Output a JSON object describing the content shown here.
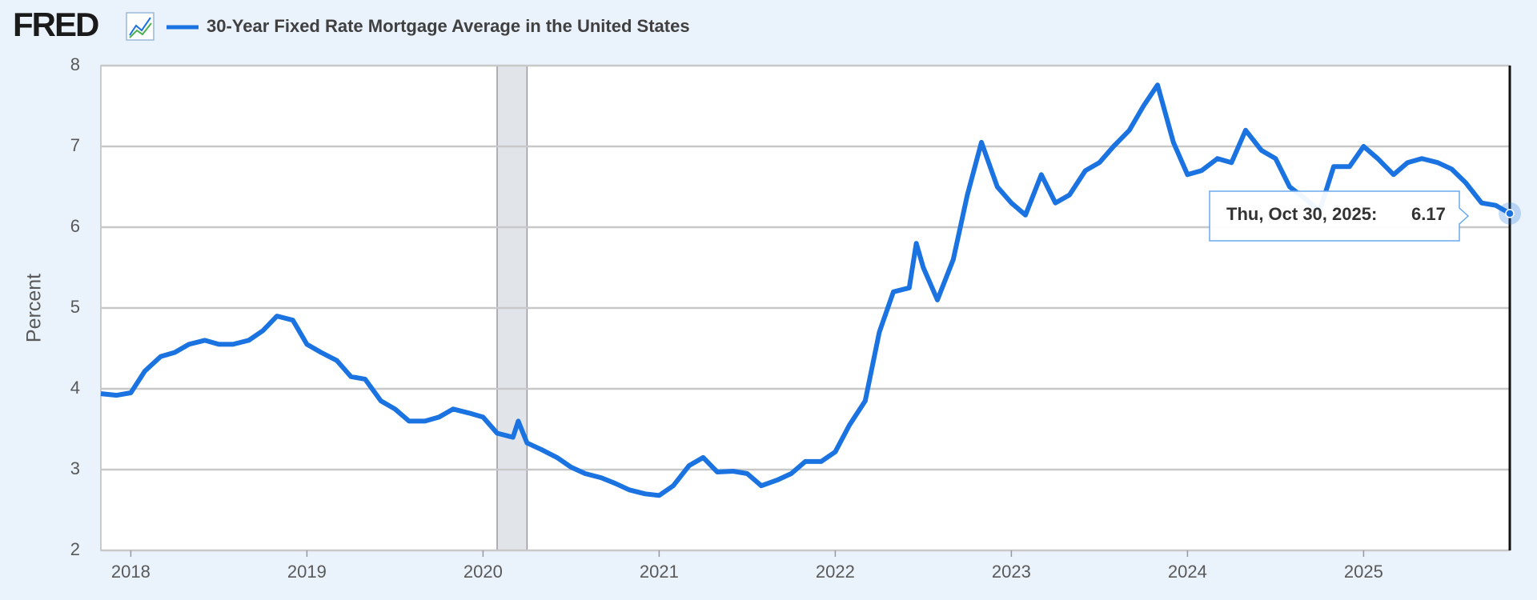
{
  "chart_data": {
    "type": "line",
    "brand": "FRED",
    "ylabel": "Percent",
    "series": [
      {
        "name": "30-Year Fixed Rate Mortgage Average in the United States",
        "color": "#1a73e0",
        "values": [
          3.94,
          3.92,
          3.95,
          4.22,
          4.4,
          4.45,
          4.55,
          4.6,
          4.55,
          4.55,
          4.6,
          4.72,
          4.9,
          4.85,
          4.55,
          4.45,
          4.35,
          4.15,
          4.12,
          3.85,
          3.75,
          3.6,
          3.6,
          3.65,
          3.75,
          3.7,
          3.65,
          3.45,
          3.4,
          3.6,
          3.33,
          3.25,
          3.15,
          3.03,
          2.95,
          2.9,
          2.83,
          2.75,
          2.7,
          2.68,
          2.8,
          3.05,
          3.15,
          2.97,
          2.98,
          2.95,
          2.8,
          2.87,
          2.95,
          3.1,
          3.1,
          3.22,
          3.55,
          3.85,
          4.7,
          5.2,
          5.25,
          5.8,
          5.5,
          5.1,
          5.6,
          6.4,
          7.05,
          6.5,
          6.3,
          6.15,
          6.65,
          6.3,
          6.4,
          6.7,
          6.8,
          7.0,
          7.2,
          7.5,
          7.76,
          7.05,
          6.65,
          6.7,
          6.85,
          6.8,
          7.2,
          6.95,
          6.85,
          6.5,
          6.35,
          6.2,
          6.75,
          6.75,
          7.0,
          6.85,
          6.65,
          6.8,
          6.85,
          6.8,
          6.72,
          6.55,
          6.3,
          6.27,
          6.17
        ]
      }
    ],
    "x": [
      2017.83,
      2017.92,
      2018.0,
      2018.08,
      2018.17,
      2018.25,
      2018.33,
      2018.42,
      2018.5,
      2018.58,
      2018.67,
      2018.75,
      2018.83,
      2018.92,
      2019.0,
      2019.08,
      2019.17,
      2019.25,
      2019.33,
      2019.42,
      2019.5,
      2019.58,
      2019.67,
      2019.75,
      2019.83,
      2019.92,
      2020.0,
      2020.08,
      2020.17,
      2020.2,
      2020.25,
      2020.33,
      2020.42,
      2020.5,
      2020.58,
      2020.67,
      2020.75,
      2020.83,
      2020.92,
      2021.0,
      2021.08,
      2021.17,
      2021.25,
      2021.33,
      2021.42,
      2021.5,
      2021.58,
      2021.67,
      2021.75,
      2021.83,
      2021.92,
      2022.0,
      2022.08,
      2022.17,
      2022.25,
      2022.33,
      2022.42,
      2022.46,
      2022.5,
      2022.58,
      2022.67,
      2022.75,
      2022.83,
      2022.92,
      2023.0,
      2023.08,
      2023.17,
      2023.25,
      2023.33,
      2023.42,
      2023.5,
      2023.58,
      2023.67,
      2023.75,
      2023.83,
      2023.92,
      2024.0,
      2024.08,
      2024.17,
      2024.25,
      2024.33,
      2024.42,
      2024.5,
      2024.58,
      2024.67,
      2024.75,
      2024.83,
      2024.92,
      2025.0,
      2025.08,
      2025.17,
      2025.25,
      2025.33,
      2025.42,
      2025.5,
      2025.58,
      2025.67,
      2025.75,
      2025.83
    ],
    "xlim": [
      2017.83,
      2025.83
    ],
    "xticks": [
      2018,
      2019,
      2020,
      2021,
      2022,
      2023,
      2024,
      2025
    ],
    "ylim": [
      2,
      8
    ],
    "yticks": [
      2,
      3,
      4,
      5,
      6,
      7,
      8
    ],
    "grid": true,
    "recessions": [
      [
        2020.08,
        2020.25
      ]
    ],
    "tooltip": {
      "label": "Thu, Oct 30, 2025:"
    }
  }
}
